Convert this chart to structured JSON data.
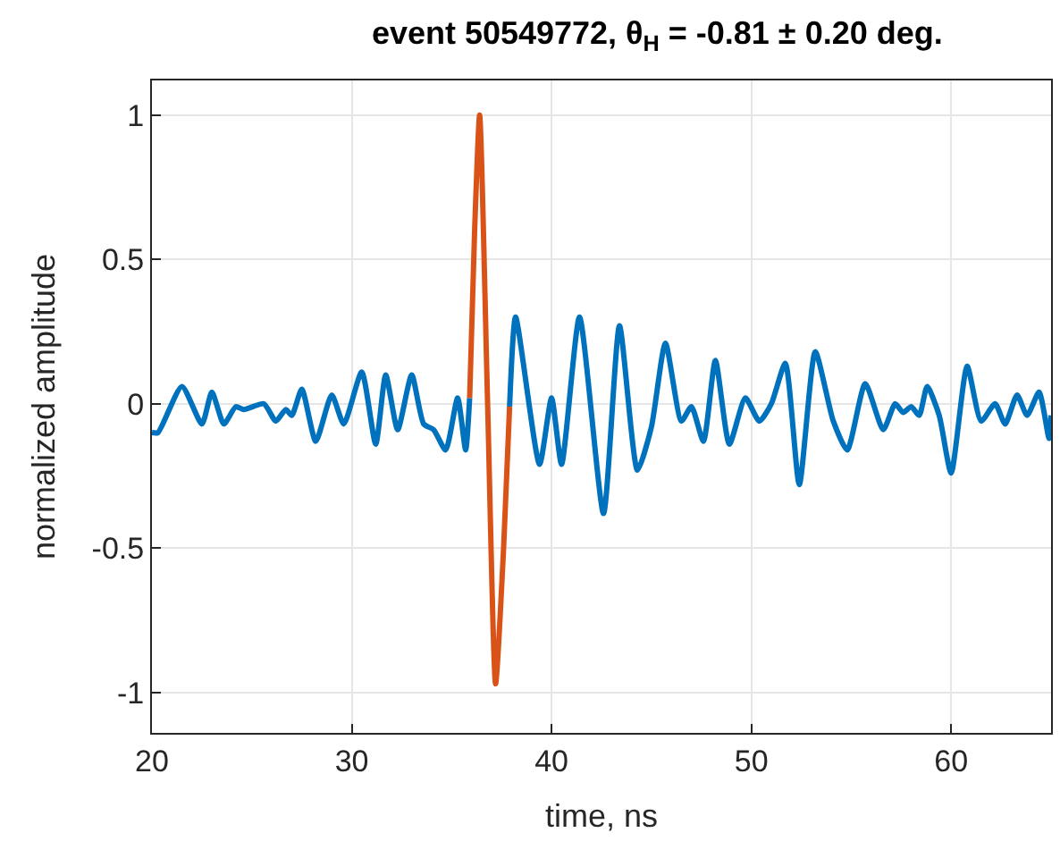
{
  "chart_data": {
    "type": "line",
    "title": "event 50549772, θ$_{H}$ = -0.81 ± 0.20 deg.",
    "xlabel": "time, ns",
    "ylabel": "normalized amplitude",
    "xlim": [
      20,
      65
    ],
    "xticks": [
      20,
      30,
      40,
      50,
      60
    ],
    "ylim": [
      -1.14,
      1.12
    ],
    "yticks": [
      -1,
      -0.5,
      0,
      0.5,
      1
    ],
    "grid": true,
    "marker": "none",
    "line_style": "solid",
    "series": [
      {
        "color": "#0072bd",
        "x": [
          20,
          20.3,
          21.5,
          22.5,
          23.0,
          23.6,
          24.2,
          24.6,
          25.6,
          26.2,
          26.7,
          27.0,
          27.5,
          28.2,
          29.0,
          29.6,
          30.5,
          31.2,
          31.7,
          32.3,
          33.0,
          33.6,
          34.1,
          34.7,
          35.3,
          35.7,
          35.9,
          36.9,
          37.9,
          38.2,
          39.4,
          40.0,
          40.5,
          41.4,
          42.6,
          43.4,
          44.3,
          45.0,
          45.7,
          46.5,
          47.0,
          47.6,
          48.2,
          48.9,
          49.7,
          50.4,
          51.0,
          51.7,
          52.4,
          53.2,
          54.1,
          54.8,
          55.7,
          56.6,
          57.2,
          57.6,
          58.0,
          58.4,
          58.8,
          59.4,
          60.0,
          60.8,
          61.5,
          62.2,
          62.7,
          63.3,
          63.8,
          64.4,
          64.9,
          65
        ],
        "values": [
          -0.1,
          -0.1,
          0.06,
          -0.07,
          0.04,
          -0.07,
          -0.01,
          -0.02,
          0.0,
          -0.06,
          -0.02,
          -0.04,
          0.05,
          -0.13,
          0.03,
          -0.07,
          0.11,
          -0.14,
          0.1,
          -0.09,
          0.1,
          -0.07,
          -0.09,
          -0.16,
          0.02,
          -0.16,
          0.02,
          null,
          -0.01,
          0.3,
          -0.21,
          0.02,
          -0.21,
          0.3,
          -0.38,
          0.27,
          -0.23,
          -0.08,
          0.21,
          -0.06,
          -0.01,
          -0.13,
          0.15,
          -0.14,
          0.02,
          -0.06,
          0.0,
          0.14,
          -0.28,
          0.18,
          -0.06,
          -0.16,
          0.07,
          -0.09,
          0.0,
          -0.03,
          -0.01,
          -0.04,
          0.06,
          -0.04,
          -0.24,
          0.13,
          -0.06,
          0.0,
          -0.07,
          0.03,
          -0.04,
          0.04,
          -0.12,
          -0.04
        ]
      },
      {
        "color": "#d95319",
        "x": [
          35.9,
          36.15,
          36.4,
          36.8,
          37.2,
          37.6,
          37.9
        ],
        "values": [
          0.02,
          0.6,
          1.0,
          0.0,
          -0.97,
          -0.5,
          -0.01
        ]
      }
    ]
  }
}
